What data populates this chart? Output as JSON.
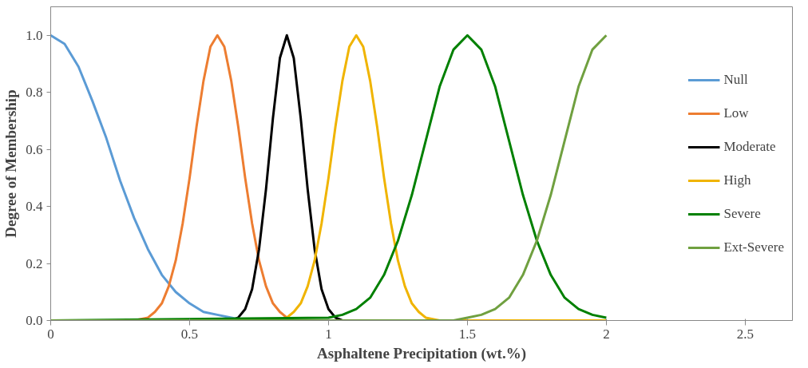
{
  "chart_data": {
    "type": "line",
    "xlabel": "Asphaltene Precipitation (wt.%)",
    "ylabel": "Degree of Membership",
    "xlim": [
      0,
      2.67
    ],
    "xticks": [
      0,
      0.5,
      1,
      1.5,
      2,
      2.5
    ],
    "ylim": [
      0,
      1.1
    ],
    "yticks": [
      {
        "value": 0,
        "label": "0.0"
      },
      {
        "value": 0.2,
        "label": "0.2"
      },
      {
        "value": 0.4,
        "label": "0.4"
      },
      {
        "value": 0.6,
        "label": "0.6"
      },
      {
        "value": 0.8,
        "label": "0.8"
      },
      {
        "value": 1.0,
        "label": "1.0"
      }
    ],
    "grid": false,
    "legend": "right",
    "marker": "none",
    "line_style": "solid",
    "series": [
      {
        "name": "Null",
        "color": "#5b9bd5",
        "x": [
          0,
          0.05,
          0.1,
          0.15,
          0.2,
          0.25,
          0.3,
          0.35,
          0.4,
          0.45,
          0.5,
          0.55,
          0.6,
          0.65,
          0.7
        ],
        "values": [
          1,
          0.97,
          0.89,
          0.77,
          0.64,
          0.49,
          0.36,
          0.25,
          0.16,
          0.1,
          0.06,
          0.03,
          0.02,
          0.01,
          0
        ]
      },
      {
        "name": "Low",
        "color": "#ed7d31",
        "x": [
          0,
          0.3,
          0.325,
          0.35,
          0.375,
          0.4,
          0.425,
          0.45,
          0.475,
          0.5,
          0.525,
          0.55,
          0.575,
          0.6,
          0.625,
          0.65,
          0.675,
          0.7,
          0.725,
          0.75,
          0.775,
          0.8,
          0.825,
          0.85,
          0.875
        ],
        "values": [
          0,
          0,
          0.005,
          0.01,
          0.03,
          0.06,
          0.12,
          0.21,
          0.34,
          0.5,
          0.68,
          0.84,
          0.96,
          1,
          0.96,
          0.84,
          0.68,
          0.5,
          0.34,
          0.21,
          0.12,
          0.06,
          0.03,
          0.01,
          0.005
        ]
      },
      {
        "name": "Moderate",
        "color": "#000000",
        "x": [
          0,
          0.65,
          0.675,
          0.7,
          0.725,
          0.75,
          0.775,
          0.8,
          0.825,
          0.85,
          0.875,
          0.9,
          0.925,
          0.95,
          0.975,
          1.0,
          1.025,
          1.05,
          2
        ],
        "values": [
          0,
          0,
          0.01,
          0.04,
          0.11,
          0.25,
          0.46,
          0.71,
          0.92,
          1,
          0.92,
          0.71,
          0.46,
          0.25,
          0.11,
          0.04,
          0.01,
          0,
          0
        ]
      },
      {
        "name": "High",
        "color": "#f0b400",
        "x": [
          0.825,
          0.85,
          0.875,
          0.9,
          0.925,
          0.95,
          0.975,
          1.0,
          1.025,
          1.05,
          1.075,
          1.1,
          1.125,
          1.15,
          1.175,
          1.2,
          1.225,
          1.25,
          1.275,
          1.3,
          1.325,
          1.35,
          1.375,
          1.4,
          2
        ],
        "values": [
          0.005,
          0.01,
          0.03,
          0.06,
          0.12,
          0.21,
          0.34,
          0.5,
          0.68,
          0.84,
          0.96,
          1,
          0.96,
          0.84,
          0.68,
          0.5,
          0.34,
          0.21,
          0.12,
          0.06,
          0.03,
          0.01,
          0.005,
          0,
          0
        ]
      },
      {
        "name": "Severe",
        "color": "#008000",
        "x": [
          0,
          1.0,
          1.05,
          1.1,
          1.15,
          1.2,
          1.25,
          1.3,
          1.35,
          1.4,
          1.45,
          1.5,
          1.55,
          1.6,
          1.65,
          1.7,
          1.75,
          1.8,
          1.85,
          1.9,
          1.95,
          2.0
        ],
        "values": [
          0,
          0.01,
          0.02,
          0.04,
          0.08,
          0.16,
          0.28,
          0.44,
          0.63,
          0.82,
          0.95,
          1,
          0.95,
          0.82,
          0.63,
          0.44,
          0.28,
          0.16,
          0.08,
          0.04,
          0.02,
          0.01
        ]
      },
      {
        "name": "Ext-Severe",
        "color": "#70a040",
        "x": [
          0,
          1.45,
          1.5,
          1.55,
          1.6,
          1.65,
          1.7,
          1.75,
          1.8,
          1.85,
          1.9,
          1.95,
          2.0
        ],
        "values": [
          0,
          0,
          0.01,
          0.02,
          0.04,
          0.08,
          0.16,
          0.28,
          0.44,
          0.63,
          0.82,
          0.95,
          1
        ]
      }
    ]
  }
}
